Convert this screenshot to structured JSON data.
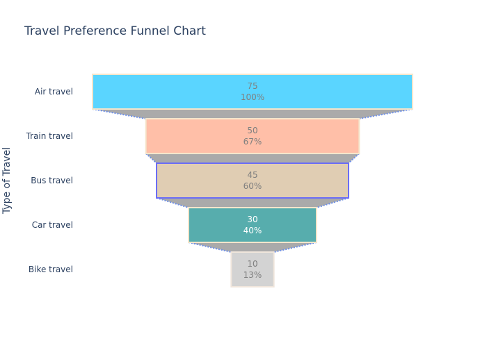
{
  "chart_data": {
    "type": "funnel",
    "title": "Travel Preference Funnel Chart",
    "ylabel": "Type of Travel",
    "categories": [
      "Air travel",
      "Train travel",
      "Bus travel",
      "Car travel",
      "Bike travel"
    ],
    "values": [
      75,
      50,
      45,
      30,
      10
    ],
    "percent_labels": [
      "100%",
      "67%",
      "60%",
      "40%",
      "13%"
    ],
    "colors": [
      "#5ad5ff",
      "#ffbfa8",
      "#e0cdb3",
      "#57adad",
      "#d3d3d3"
    ],
    "border_colors": [
      "#f5e6cc",
      "#f5e6cc",
      "#6a6cf6",
      "#f5e6cc",
      "#f0e6dc"
    ],
    "text_colors": [
      "#7f7f7f",
      "#7f7f7f",
      "#7f7f7f",
      "#ffffff",
      "#7f7f7f"
    ],
    "connector_fill": "#aaaaaa",
    "connector_line_color": "#6d8fe8"
  }
}
